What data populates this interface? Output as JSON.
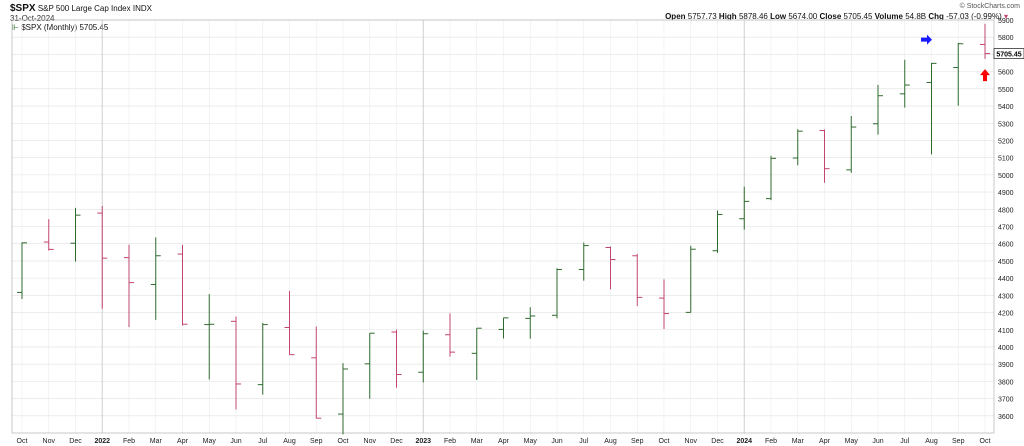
{
  "header": {
    "symbol": "$SPX",
    "name": "S&P 500 Large Cap Index",
    "exchange": "INDX",
    "date": "31-Oct-2024",
    "legend": "$SPX (Monthly) 5705.45",
    "source": "© StockCharts.com",
    "ohlc": {
      "open_label": "Open",
      "open": "5757.73",
      "high_label": "High",
      "high": "5878.46",
      "low_label": "Low",
      "low": "5674.00",
      "close_label": "Close",
      "close": "5705.45",
      "volume_label": "Volume",
      "volume": "54.8B",
      "chg_label": "Chg",
      "chg": "-57.03 (-0.99%)"
    }
  },
  "colors": {
    "up": "#2e6b2e",
    "down": "#c2456e",
    "grid": "#e0e0e0",
    "blue_arrow": "#1a1aff",
    "red_arrow": "#ff0000"
  },
  "chart_data": {
    "type": "ohlc",
    "xlabel": "",
    "ylabel": "",
    "ylim": [
      3500,
      5900
    ],
    "yticks": [
      3600,
      3700,
      3800,
      3900,
      4000,
      4100,
      4200,
      4300,
      4400,
      4500,
      4600,
      4700,
      4800,
      4900,
      5000,
      5100,
      5200,
      5300,
      5400,
      5500,
      5600,
      5700,
      5800,
      5900
    ],
    "last_value_label": "5705.45",
    "categories": [
      "Oct",
      "Nov",
      "Dec",
      "2022",
      "Feb",
      "Mar",
      "Apr",
      "May",
      "Jun",
      "Jul",
      "Aug",
      "Sep",
      "Oct",
      "Nov",
      "Dec",
      "2023",
      "Feb",
      "Mar",
      "Apr",
      "May",
      "Jun",
      "Jul",
      "Aug",
      "Sep",
      "Oct",
      "Nov",
      "Dec",
      "2024",
      "Feb",
      "Mar",
      "Apr",
      "May",
      "Jun",
      "Jul",
      "Aug",
      "Sep",
      "Oct"
    ],
    "bold_categories": [
      "2022",
      "2023",
      "2024"
    ],
    "bars": [
      {
        "o": 4317,
        "h": 4608,
        "l": 4279,
        "c": 4605
      },
      {
        "o": 4610,
        "h": 4743,
        "l": 4560,
        "c": 4567
      },
      {
        "o": 4603,
        "h": 4808,
        "l": 4496,
        "c": 4766
      },
      {
        "o": 4778,
        "h": 4819,
        "l": 4222,
        "c": 4516
      },
      {
        "o": 4519,
        "h": 4595,
        "l": 4115,
        "c": 4374
      },
      {
        "o": 4363,
        "h": 4637,
        "l": 4157,
        "c": 4530
      },
      {
        "o": 4540,
        "h": 4593,
        "l": 4125,
        "c": 4132
      },
      {
        "o": 4130,
        "h": 4307,
        "l": 3811,
        "c": 4132
      },
      {
        "o": 4149,
        "h": 4177,
        "l": 3637,
        "c": 3785
      },
      {
        "o": 3781,
        "h": 4140,
        "l": 3723,
        "c": 4130
      },
      {
        "o": 4113,
        "h": 4325,
        "l": 3955,
        "c": 3955
      },
      {
        "o": 3937,
        "h": 4119,
        "l": 3585,
        "c": 3586
      },
      {
        "o": 3610,
        "h": 3906,
        "l": 3492,
        "c": 3872
      },
      {
        "o": 3902,
        "h": 4080,
        "l": 3699,
        "c": 4080
      },
      {
        "o": 4087,
        "h": 4101,
        "l": 3764,
        "c": 3840
      },
      {
        "o": 3853,
        "h": 4095,
        "l": 3794,
        "c": 4077
      },
      {
        "o": 4071,
        "h": 4195,
        "l": 3944,
        "c": 3970
      },
      {
        "o": 3963,
        "h": 4110,
        "l": 3809,
        "c": 4109
      },
      {
        "o": 4102,
        "h": 4170,
        "l": 4049,
        "c": 4169
      },
      {
        "o": 4166,
        "h": 4231,
        "l": 4048,
        "c": 4180
      },
      {
        "o": 4184,
        "h": 4458,
        "l": 4166,
        "c": 4450
      },
      {
        "o": 4450,
        "h": 4607,
        "l": 4385,
        "c": 4589
      },
      {
        "o": 4578,
        "h": 4584,
        "l": 4335,
        "c": 4508
      },
      {
        "o": 4530,
        "h": 4541,
        "l": 4238,
        "c": 4288
      },
      {
        "o": 4284,
        "h": 4393,
        "l": 4104,
        "c": 4194
      },
      {
        "o": 4201,
        "h": 4588,
        "l": 4201,
        "c": 4568
      },
      {
        "o": 4559,
        "h": 4793,
        "l": 4547,
        "c": 4770
      },
      {
        "o": 4745,
        "h": 4931,
        "l": 4682,
        "c": 4846
      },
      {
        "o": 4862,
        "h": 5111,
        "l": 4853,
        "c": 5096
      },
      {
        "o": 5098,
        "h": 5265,
        "l": 5056,
        "c": 5254
      },
      {
        "o": 5258,
        "h": 5264,
        "l": 4954,
        "c": 5036
      },
      {
        "o": 5029,
        "h": 5342,
        "l": 5012,
        "c": 5278
      },
      {
        "o": 5297,
        "h": 5523,
        "l": 5234,
        "c": 5460
      },
      {
        "o": 5471,
        "h": 5669,
        "l": 5391,
        "c": 5522
      },
      {
        "o": 5537,
        "h": 5651,
        "l": 5119,
        "c": 5648
      },
      {
        "o": 5624,
        "h": 5767,
        "l": 5402,
        "c": 5762
      },
      {
        "o": 5758,
        "h": 5878,
        "l": 5674,
        "c": 5705
      }
    ]
  }
}
